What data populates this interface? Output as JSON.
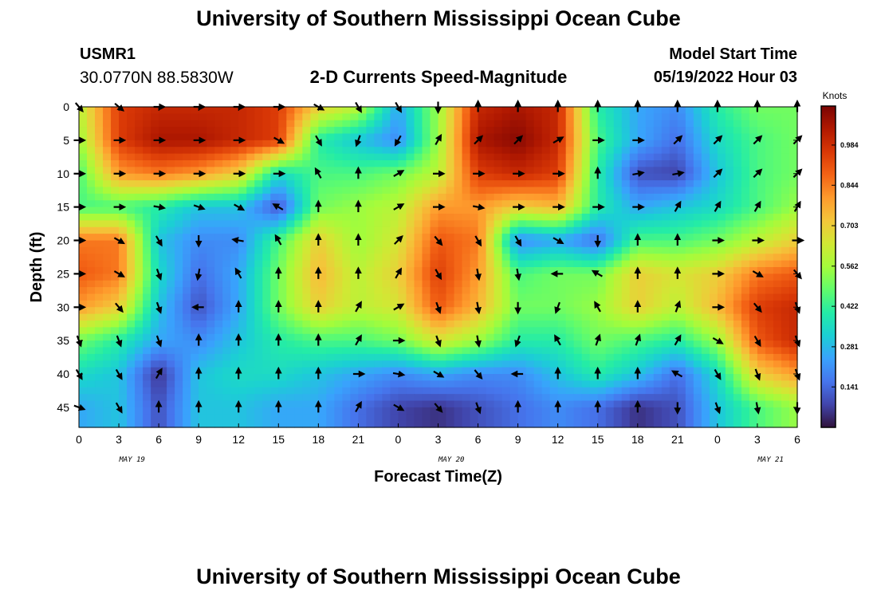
{
  "header": {
    "title": "University of Southern Mississippi Ocean Cube",
    "station": "USMR1",
    "coords": "30.0770N  88.5830W",
    "subtitle": "2-D Currents Speed-Magnitude",
    "model_start_label": "Model Start Time",
    "model_start_value": "05/19/2022 Hour 03"
  },
  "footer": {
    "title": "University of Southern Mississippi Ocean Cube"
  },
  "chart_data": {
    "type": "heatmap",
    "title": "2-D Currents Speed-Magnitude",
    "xlabel": "Forecast Time(Z)",
    "ylabel": "Depth (ft)",
    "x_tick_labels": [
      "0",
      "3",
      "6",
      "9",
      "12",
      "15",
      "18",
      "21",
      "0",
      "3",
      "6",
      "9",
      "12",
      "15",
      "18",
      "21",
      "0",
      "3",
      "6"
    ],
    "x_range_hours": [
      0,
      54
    ],
    "date_labels": [
      {
        "label": "MAY 19",
        "at_hour": 0
      },
      {
        "label": "MAY 20",
        "at_hour": 24
      },
      {
        "label": "MAY 21",
        "at_hour": 48
      }
    ],
    "y_ticks": [
      0,
      5,
      10,
      15,
      20,
      25,
      30,
      35,
      40,
      45
    ],
    "y_range": [
      0,
      48
    ],
    "y_inverted": true,
    "colorbar": {
      "label": "Knots",
      "ticks": [
        0.141,
        0.281,
        0.422,
        0.562,
        0.703,
        0.844,
        0.984
      ],
      "tick_labels": [
        "0.141",
        "0.281",
        "0.422",
        "0.562",
        "0.703",
        "0.844",
        "0.984"
      ],
      "range": [
        0.0,
        1.12
      ],
      "colormap": [
        "#30123b",
        "#4145ab",
        "#4675ed",
        "#39a2fc",
        "#1bcfd4",
        "#24eca6",
        "#61fc6c",
        "#a4fc3b",
        "#d1e834",
        "#f3c63a",
        "#fe9b2d",
        "#f36315",
        "#d93806",
        "#b11901",
        "#7a0403"
      ]
    },
    "times": [
      0,
      3,
      6,
      9,
      12,
      15,
      18,
      21,
      24,
      27,
      30,
      33,
      36,
      39,
      42,
      45,
      48,
      51,
      54
    ],
    "depths": [
      0,
      5,
      10,
      15,
      20,
      25,
      30,
      35,
      40,
      45
    ],
    "speed": [
      [
        0.6,
        0.95,
        1.0,
        1.0,
        1.0,
        0.95,
        0.7,
        0.6,
        0.25,
        0.55,
        1.0,
        1.05,
        1.0,
        0.4,
        0.25,
        0.2,
        0.4,
        0.5,
        0.5
      ],
      [
        0.55,
        0.95,
        1.05,
        1.05,
        1.0,
        0.95,
        0.4,
        0.3,
        0.2,
        0.55,
        1.05,
        1.1,
        1.0,
        0.45,
        0.25,
        0.15,
        0.35,
        0.45,
        0.5
      ],
      [
        0.45,
        0.8,
        0.85,
        0.8,
        0.7,
        0.35,
        0.45,
        0.45,
        0.5,
        0.6,
        0.95,
        1.0,
        0.95,
        0.4,
        0.1,
        0.08,
        0.3,
        0.45,
        0.5
      ],
      [
        0.45,
        0.45,
        0.4,
        0.3,
        0.3,
        0.1,
        0.5,
        0.55,
        0.6,
        0.8,
        0.8,
        0.7,
        0.75,
        0.4,
        0.25,
        0.3,
        0.35,
        0.45,
        0.55
      ],
      [
        0.85,
        0.85,
        0.3,
        0.2,
        0.2,
        0.45,
        0.7,
        0.55,
        0.65,
        0.9,
        0.85,
        0.2,
        0.25,
        0.15,
        0.45,
        0.45,
        0.5,
        0.6,
        0.7
      ],
      [
        0.9,
        0.85,
        0.35,
        0.15,
        0.25,
        0.5,
        0.75,
        0.6,
        0.7,
        0.95,
        0.8,
        0.45,
        0.5,
        0.5,
        0.7,
        0.65,
        0.7,
        0.85,
        0.9
      ],
      [
        0.8,
        0.7,
        0.3,
        0.1,
        0.25,
        0.5,
        0.7,
        0.6,
        0.65,
        0.9,
        0.75,
        0.5,
        0.5,
        0.55,
        0.7,
        0.6,
        0.75,
        0.95,
        1.0
      ],
      [
        0.5,
        0.4,
        0.25,
        0.2,
        0.3,
        0.4,
        0.45,
        0.45,
        0.5,
        0.65,
        0.55,
        0.4,
        0.4,
        0.5,
        0.45,
        0.4,
        0.55,
        0.9,
        1.0
      ],
      [
        0.35,
        0.3,
        0.05,
        0.3,
        0.35,
        0.35,
        0.3,
        0.25,
        0.2,
        0.25,
        0.2,
        0.2,
        0.3,
        0.4,
        0.3,
        0.15,
        0.35,
        0.7,
        0.8
      ],
      [
        0.25,
        0.3,
        0.1,
        0.3,
        0.3,
        0.25,
        0.25,
        0.15,
        0.08,
        0.05,
        0.1,
        0.15,
        0.2,
        0.15,
        0.05,
        0.1,
        0.3,
        0.45,
        0.55
      ]
    ],
    "direction_deg": [
      [
        140,
        130,
        90,
        90,
        90,
        90,
        120,
        150,
        150,
        180,
        0,
        0,
        0,
        0,
        0,
        0,
        0,
        0,
        0
      ],
      [
        90,
        90,
        90,
        90,
        90,
        120,
        150,
        200,
        210,
        30,
        45,
        45,
        60,
        90,
        90,
        45,
        45,
        45,
        45
      ],
      [
        90,
        90,
        90,
        90,
        90,
        90,
        330,
        0,
        60,
        90,
        90,
        90,
        90,
        0,
        80,
        80,
        45,
        45,
        45
      ],
      [
        90,
        90,
        100,
        110,
        120,
        300,
        0,
        0,
        60,
        90,
        100,
        90,
        90,
        90,
        90,
        30,
        30,
        30,
        30
      ],
      [
        90,
        120,
        150,
        180,
        280,
        330,
        0,
        0,
        45,
        140,
        150,
        150,
        120,
        180,
        0,
        0,
        90,
        90,
        90
      ],
      [
        90,
        120,
        160,
        190,
        330,
        0,
        0,
        0,
        30,
        150,
        170,
        170,
        270,
        300,
        0,
        0,
        90,
        120,
        140
      ],
      [
        90,
        140,
        160,
        270,
        0,
        0,
        0,
        30,
        60,
        160,
        170,
        180,
        200,
        330,
        0,
        20,
        90,
        140,
        160
      ],
      [
        160,
        160,
        160,
        0,
        0,
        0,
        0,
        30,
        90,
        160,
        170,
        200,
        330,
        20,
        20,
        30,
        120,
        150,
        160
      ],
      [
        150,
        150,
        30,
        0,
        0,
        0,
        0,
        90,
        100,
        120,
        140,
        270,
        0,
        0,
        0,
        300,
        150,
        160,
        160
      ],
      [
        110,
        150,
        0,
        0,
        0,
        0,
        0,
        30,
        120,
        140,
        160,
        0,
        0,
        0,
        0,
        180,
        160,
        170,
        180
      ]
    ]
  }
}
